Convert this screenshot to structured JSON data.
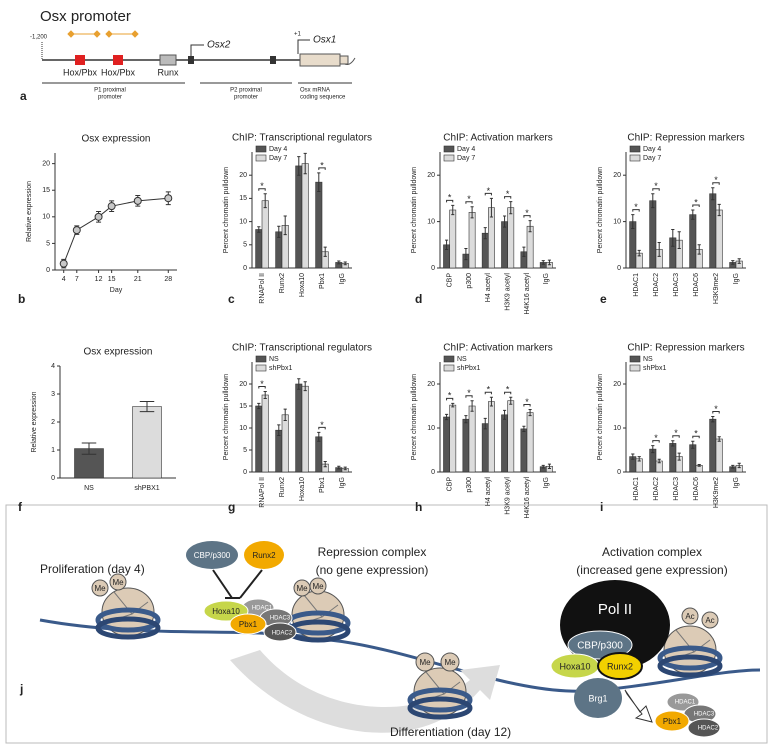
{
  "panel_a": {
    "label": "a",
    "title": "Osx promoter",
    "start": "-1,200",
    "tss2": "Osx2",
    "tss1": "Osx1",
    "plus1": "+1",
    "sites": [
      "Hox/Pbx",
      "Hox/Pbx",
      "Runx"
    ],
    "regions": [
      [
        "P1 proximal",
        "promoter"
      ],
      [
        "P2 proximal",
        "promoter"
      ],
      [
        "Osx mRNA",
        "coding sequence"
      ]
    ]
  },
  "panel_j": {
    "label": "j",
    "proliferation": "Proliferation (day 4)",
    "differentiation": "Differentiation (day 12)",
    "repression": [
      "Repression complex",
      "(no gene expression)"
    ],
    "activation": [
      "Activation complex",
      "(increased gene expression)"
    ],
    "repression_nodes": [
      "CBP/p300",
      "Runx2",
      "Hoxa10",
      "Pbx1",
      "HDAC1",
      "HDAC3",
      "HDAC2"
    ],
    "activation_nodes": [
      "Pol II",
      "CBP/p300",
      "Hoxa10",
      "Runx2",
      "Brg1"
    ],
    "released_nodes": [
      "HDAC1",
      "HDAC3",
      "HDAC2",
      "Pbx1"
    ],
    "marks": [
      "Me",
      "Me",
      "Me",
      "Me",
      "Me",
      "Me",
      "Ac",
      "Ac"
    ]
  },
  "chart_data": [
    {
      "type": "line",
      "label": "b",
      "title": "Osx expression",
      "x_label": "Day",
      "y_label": "Relative expression",
      "x": [
        4,
        7,
        12,
        15,
        21,
        28
      ],
      "values": [
        1.2,
        7.5,
        10,
        12,
        13,
        13.5
      ],
      "errors": [
        0.8,
        0.8,
        1,
        1,
        1,
        1.2
      ],
      "xlim": [
        2,
        30
      ],
      "xticks": [
        4,
        7,
        12,
        15,
        21,
        28
      ],
      "ylim": [
        0,
        22
      ],
      "yticks": [
        0,
        5,
        10,
        15,
        20
      ],
      "color": "#c8c8c8"
    },
    {
      "type": "bar",
      "label": "c",
      "title": "ChIP: Transcriptional regulators",
      "y_label": "Percent chromatin pulldown",
      "categories": [
        "RNAPol II",
        "Runx2",
        "Hoxa10",
        "Pbx1",
        "IgG"
      ],
      "series": [
        {
          "name": "Day 4",
          "color": "#555555",
          "values": [
            8.3,
            7.8,
            22,
            18.5,
            1.2
          ],
          "errors": [
            0.6,
            1.2,
            2,
            2,
            0.3
          ]
        },
        {
          "name": "Day 7",
          "color": "#dcdcdc",
          "values": [
            14.5,
            9.2,
            22.5,
            3.5,
            1
          ],
          "errors": [
            1.5,
            2,
            2.2,
            1,
            0.3
          ]
        }
      ],
      "significance": [
        "*",
        null,
        null,
        "*",
        null
      ],
      "ylim": [
        0,
        25
      ],
      "yticks": [
        0,
        5,
        10,
        15,
        20
      ]
    },
    {
      "type": "bar",
      "label": "d",
      "title": "ChIP: Activation markers",
      "y_label": "Percent chromatin pulldown",
      "categories": [
        "CBP",
        "p300",
        "H4 acetyl",
        "H3K9 acetyl",
        "H4K16 acetyl",
        "IgG"
      ],
      "series": [
        {
          "name": "Day 4",
          "color": "#555555",
          "values": [
            5,
            3,
            7.5,
            10,
            3.5,
            1.2
          ],
          "errors": [
            1,
            1.2,
            1.2,
            1.2,
            1,
            0.4
          ]
        },
        {
          "name": "Day 7",
          "color": "#dcdcdc",
          "values": [
            12.5,
            12,
            13,
            13,
            9,
            1.2
          ],
          "errors": [
            1,
            1.2,
            2,
            1.3,
            1.2,
            0.5
          ]
        }
      ],
      "significance": [
        "*",
        "*",
        "*",
        "*",
        "*",
        null
      ],
      "ylim": [
        0,
        25
      ],
      "yticks": [
        0,
        10,
        20
      ]
    },
    {
      "type": "bar",
      "label": "e",
      "title": "ChIP: Repression markers",
      "y_label": "Percent chromatin pulldown",
      "categories": [
        "HDAC1",
        "HDAC2",
        "HDAC3",
        "HDAC6",
        "H3K9me2",
        "IgG"
      ],
      "series": [
        {
          "name": "Day 4",
          "color": "#555555",
          "values": [
            10,
            14.5,
            6.5,
            11.5,
            16,
            1.2
          ],
          "errors": [
            1.5,
            1.5,
            1.8,
            1,
            1.3,
            0.4
          ]
        },
        {
          "name": "Day 7",
          "color": "#dcdcdc",
          "values": [
            3.2,
            4,
            6,
            4,
            12.5,
            1.5
          ],
          "errors": [
            0.6,
            1.5,
            1.8,
            1,
            1.2,
            0.5
          ]
        }
      ],
      "significance": [
        "*",
        "*",
        null,
        "*",
        "*",
        null
      ],
      "ylim": [
        0,
        25
      ],
      "yticks": [
        0,
        10,
        20
      ]
    },
    {
      "type": "bar",
      "label": "f",
      "title": "Osx expression",
      "y_label": "Relative expression",
      "categories": [
        "NS",
        "shPBX1"
      ],
      "values": [
        1.05,
        2.55
      ],
      "errors": [
        0.2,
        0.18
      ],
      "colors": [
        "#555555",
        "#dcdcdc"
      ],
      "ylim": [
        0,
        4
      ],
      "yticks": [
        0,
        1,
        2,
        3,
        4
      ]
    },
    {
      "type": "bar",
      "label": "g",
      "title": "ChIP: Transcriptional regulators",
      "y_label": "Percent chromatin pulldown",
      "categories": [
        "RNAPol II",
        "Runx2",
        "Hoxa10",
        "Pbx1",
        "IgG"
      ],
      "series": [
        {
          "name": "NS",
          "color": "#555555",
          "values": [
            15,
            9.5,
            20,
            8,
            1
          ],
          "errors": [
            0.6,
            1.2,
            1.2,
            1,
            0.3
          ]
        },
        {
          "name": "shPbx1",
          "color": "#dcdcdc",
          "values": [
            17.5,
            13,
            19.5,
            1.8,
            0.8
          ],
          "errors": [
            0.8,
            1.3,
            1,
            0.6,
            0.3
          ]
        }
      ],
      "significance": [
        "*",
        null,
        null,
        "*",
        null
      ],
      "ylim": [
        0,
        25
      ],
      "yticks": [
        0,
        5,
        10,
        15,
        20
      ]
    },
    {
      "type": "bar",
      "label": "h",
      "title": "ChIP: Activation markers",
      "y_label": "Percent chromatin pulldown",
      "categories": [
        "CBP",
        "p300",
        "H4 acetyl",
        "H3K9 acetyl",
        "H4K16 acetyl",
        "IgG"
      ],
      "series": [
        {
          "name": "NS",
          "color": "#555555",
          "values": [
            12.5,
            12,
            11,
            13,
            9.8,
            1.2
          ],
          "errors": [
            0.6,
            0.8,
            1.2,
            1,
            0.6,
            0.3
          ]
        },
        {
          "name": "shPbx1",
          "color": "#dcdcdc",
          "values": [
            15.2,
            15,
            16,
            16.2,
            13.5,
            1.3
          ],
          "errors": [
            0.4,
            1.2,
            1,
            0.8,
            0.7,
            0.5
          ]
        }
      ],
      "significance": [
        "*",
        "*",
        "*",
        "*",
        "*",
        null
      ],
      "ylim": [
        0,
        25
      ],
      "yticks": [
        0,
        10,
        20
      ]
    },
    {
      "type": "bar",
      "label": "i",
      "title": "ChIP: Repression markers",
      "y_label": "Percent chromatin pulldown",
      "categories": [
        "HDAC1",
        "HDAC2",
        "HDAC3",
        "HDAC6",
        "H3K9me2",
        "IgG"
      ],
      "series": [
        {
          "name": "NS",
          "color": "#555555",
          "values": [
            3.5,
            5.2,
            6.5,
            6.2,
            12,
            1.2
          ],
          "errors": [
            0.6,
            0.8,
            0.6,
            0.8,
            0.6,
            0.3
          ]
        },
        {
          "name": "shPbx1",
          "color": "#dcdcdc",
          "values": [
            3,
            2.5,
            3.5,
            1.5,
            7.5,
            1.5
          ],
          "errors": [
            0.5,
            0.4,
            0.8,
            0.2,
            0.5,
            0.5
          ]
        }
      ],
      "significance": [
        null,
        "*",
        "*",
        "*",
        "*",
        null
      ],
      "ylim": [
        0,
        25
      ],
      "yticks": [
        0,
        10,
        20
      ]
    }
  ]
}
